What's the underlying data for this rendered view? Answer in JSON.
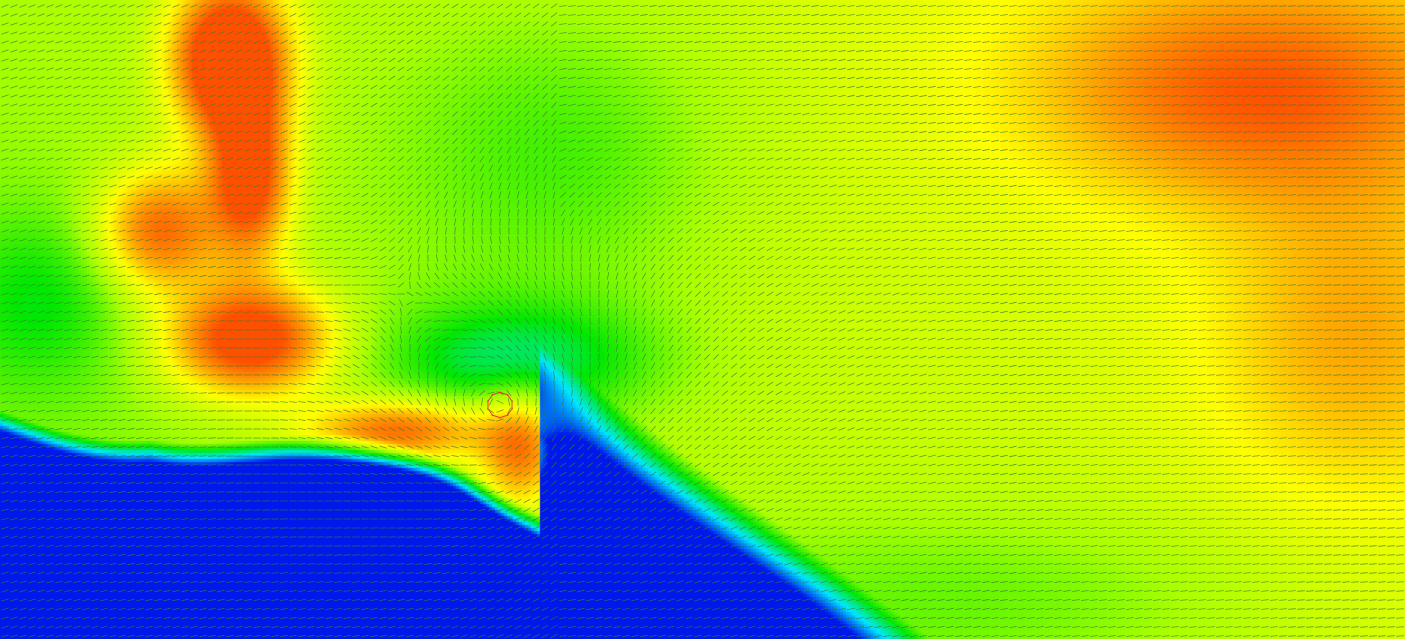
{
  "visualization": {
    "kind": "scalar-field-with-vector-glyphs",
    "colormap": "rainbow",
    "colormap_stops": [
      "#0018ea",
      "#00e8ff",
      "#00e800",
      "#aaff00",
      "#ffff00",
      "#ffa000",
      "#ff5000"
    ],
    "glyph_color": "#3a7a3a",
    "vortex_marker_color": "#e0402a",
    "background_low_color": "#0018e8"
  }
}
